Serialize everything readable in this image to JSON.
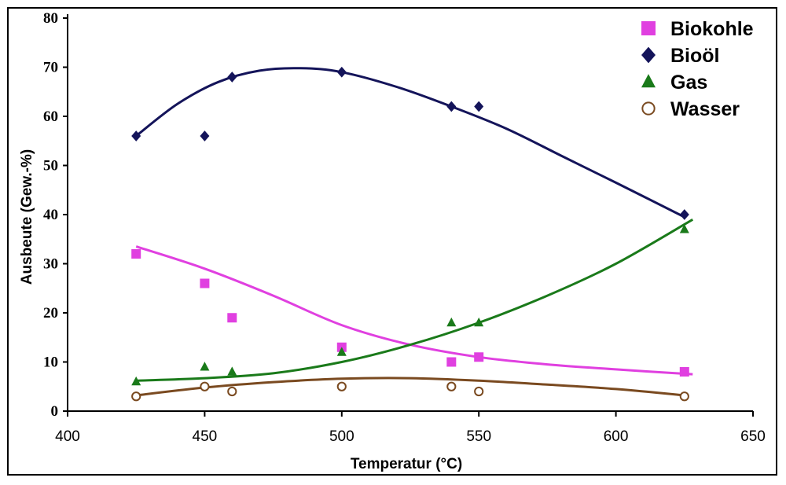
{
  "chart_data": {
    "type": "scatter",
    "title": "",
    "xlabel": "Temperatur (°C)",
    "ylabel": "Ausbeute (Gew.-%)",
    "xlim": [
      400,
      650
    ],
    "ylim": [
      0,
      80
    ],
    "x_ticks": [
      "400",
      "450",
      "500",
      "550",
      "600",
      "650"
    ],
    "y_ticks": [
      "0",
      "10",
      "20",
      "30",
      "40",
      "50",
      "60",
      "70",
      "80"
    ],
    "grid": false,
    "legend": "top-right",
    "series": [
      {
        "name": "Biokohle",
        "marker": "square",
        "color": "#e040e0",
        "points": [
          [
            425,
            32
          ],
          [
            450,
            26
          ],
          [
            460,
            19
          ],
          [
            500,
            13
          ],
          [
            540,
            10
          ],
          [
            550,
            11
          ],
          [
            625,
            8
          ]
        ],
        "trend": [
          [
            425,
            33.5
          ],
          [
            450,
            29
          ],
          [
            475,
            23.5
          ],
          [
            500,
            17.5
          ],
          [
            525,
            13.5
          ],
          [
            550,
            11
          ],
          [
            575,
            9.5
          ],
          [
            600,
            8.5
          ],
          [
            628,
            7.5
          ]
        ]
      },
      {
        "name": "Bioöl",
        "marker": "diamond",
        "color": "#14145a",
        "points": [
          [
            425,
            56
          ],
          [
            450,
            56
          ],
          [
            460,
            68
          ],
          [
            500,
            69
          ],
          [
            540,
            62
          ],
          [
            550,
            62
          ],
          [
            625,
            40
          ]
        ],
        "trend": [
          [
            425,
            56
          ],
          [
            440,
            62.5
          ],
          [
            455,
            67
          ],
          [
            470,
            69.3
          ],
          [
            485,
            69.8
          ],
          [
            500,
            69
          ],
          [
            520,
            66
          ],
          [
            540,
            62
          ],
          [
            560,
            57.5
          ],
          [
            580,
            52
          ],
          [
            600,
            46.5
          ],
          [
            625,
            39.5
          ]
        ]
      },
      {
        "name": "Gas",
        "marker": "triangle",
        "color": "#1a7a1a",
        "points": [
          [
            425,
            6
          ],
          [
            450,
            9
          ],
          [
            460,
            8
          ],
          [
            500,
            12
          ],
          [
            540,
            18
          ],
          [
            550,
            18
          ],
          [
            625,
            37
          ]
        ],
        "trend": [
          [
            425,
            6.2
          ],
          [
            450,
            6.7
          ],
          [
            475,
            7.7
          ],
          [
            500,
            10
          ],
          [
            525,
            13.5
          ],
          [
            550,
            18
          ],
          [
            575,
            23.5
          ],
          [
            600,
            30
          ],
          [
            628,
            39
          ]
        ]
      },
      {
        "name": "Wasser",
        "marker": "circle-open",
        "color": "#7a4a20",
        "points": [
          [
            425,
            3
          ],
          [
            450,
            5
          ],
          [
            460,
            4
          ],
          [
            500,
            5
          ],
          [
            540,
            5
          ],
          [
            550,
            4
          ],
          [
            625,
            3
          ]
        ],
        "trend": [
          [
            425,
            3.2
          ],
          [
            450,
            4.8
          ],
          [
            475,
            5.9
          ],
          [
            500,
            6.6
          ],
          [
            525,
            6.7
          ],
          [
            550,
            6.2
          ],
          [
            575,
            5.4
          ],
          [
            600,
            4.5
          ],
          [
            625,
            3.2
          ]
        ]
      }
    ]
  }
}
